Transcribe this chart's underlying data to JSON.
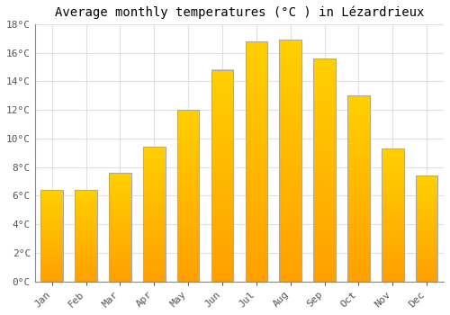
{
  "months": [
    "Jan",
    "Feb",
    "Mar",
    "Apr",
    "May",
    "Jun",
    "Jul",
    "Aug",
    "Sep",
    "Oct",
    "Nov",
    "Dec"
  ],
  "values": [
    6.4,
    6.4,
    7.6,
    9.4,
    12.0,
    14.8,
    16.8,
    16.9,
    15.6,
    13.0,
    9.3,
    7.4
  ],
  "bar_color_top": "#FFD000",
  "bar_color_bottom": "#FFA000",
  "bar_edge_color": "#AAAAAA",
  "title": "Average monthly temperatures (°C ) in Lézardrieux",
  "ylim": [
    0,
    18
  ],
  "yticks": [
    0,
    2,
    4,
    6,
    8,
    10,
    12,
    14,
    16,
    18
  ],
  "ytick_labels": [
    "0°C",
    "2°C",
    "4°C",
    "6°C",
    "8°C",
    "10°C",
    "12°C",
    "14°C",
    "16°C",
    "18°C"
  ],
  "background_color": "#FFFFFF",
  "grid_color": "#E0E0E0",
  "title_fontsize": 10,
  "tick_fontsize": 8,
  "font_family": "monospace"
}
